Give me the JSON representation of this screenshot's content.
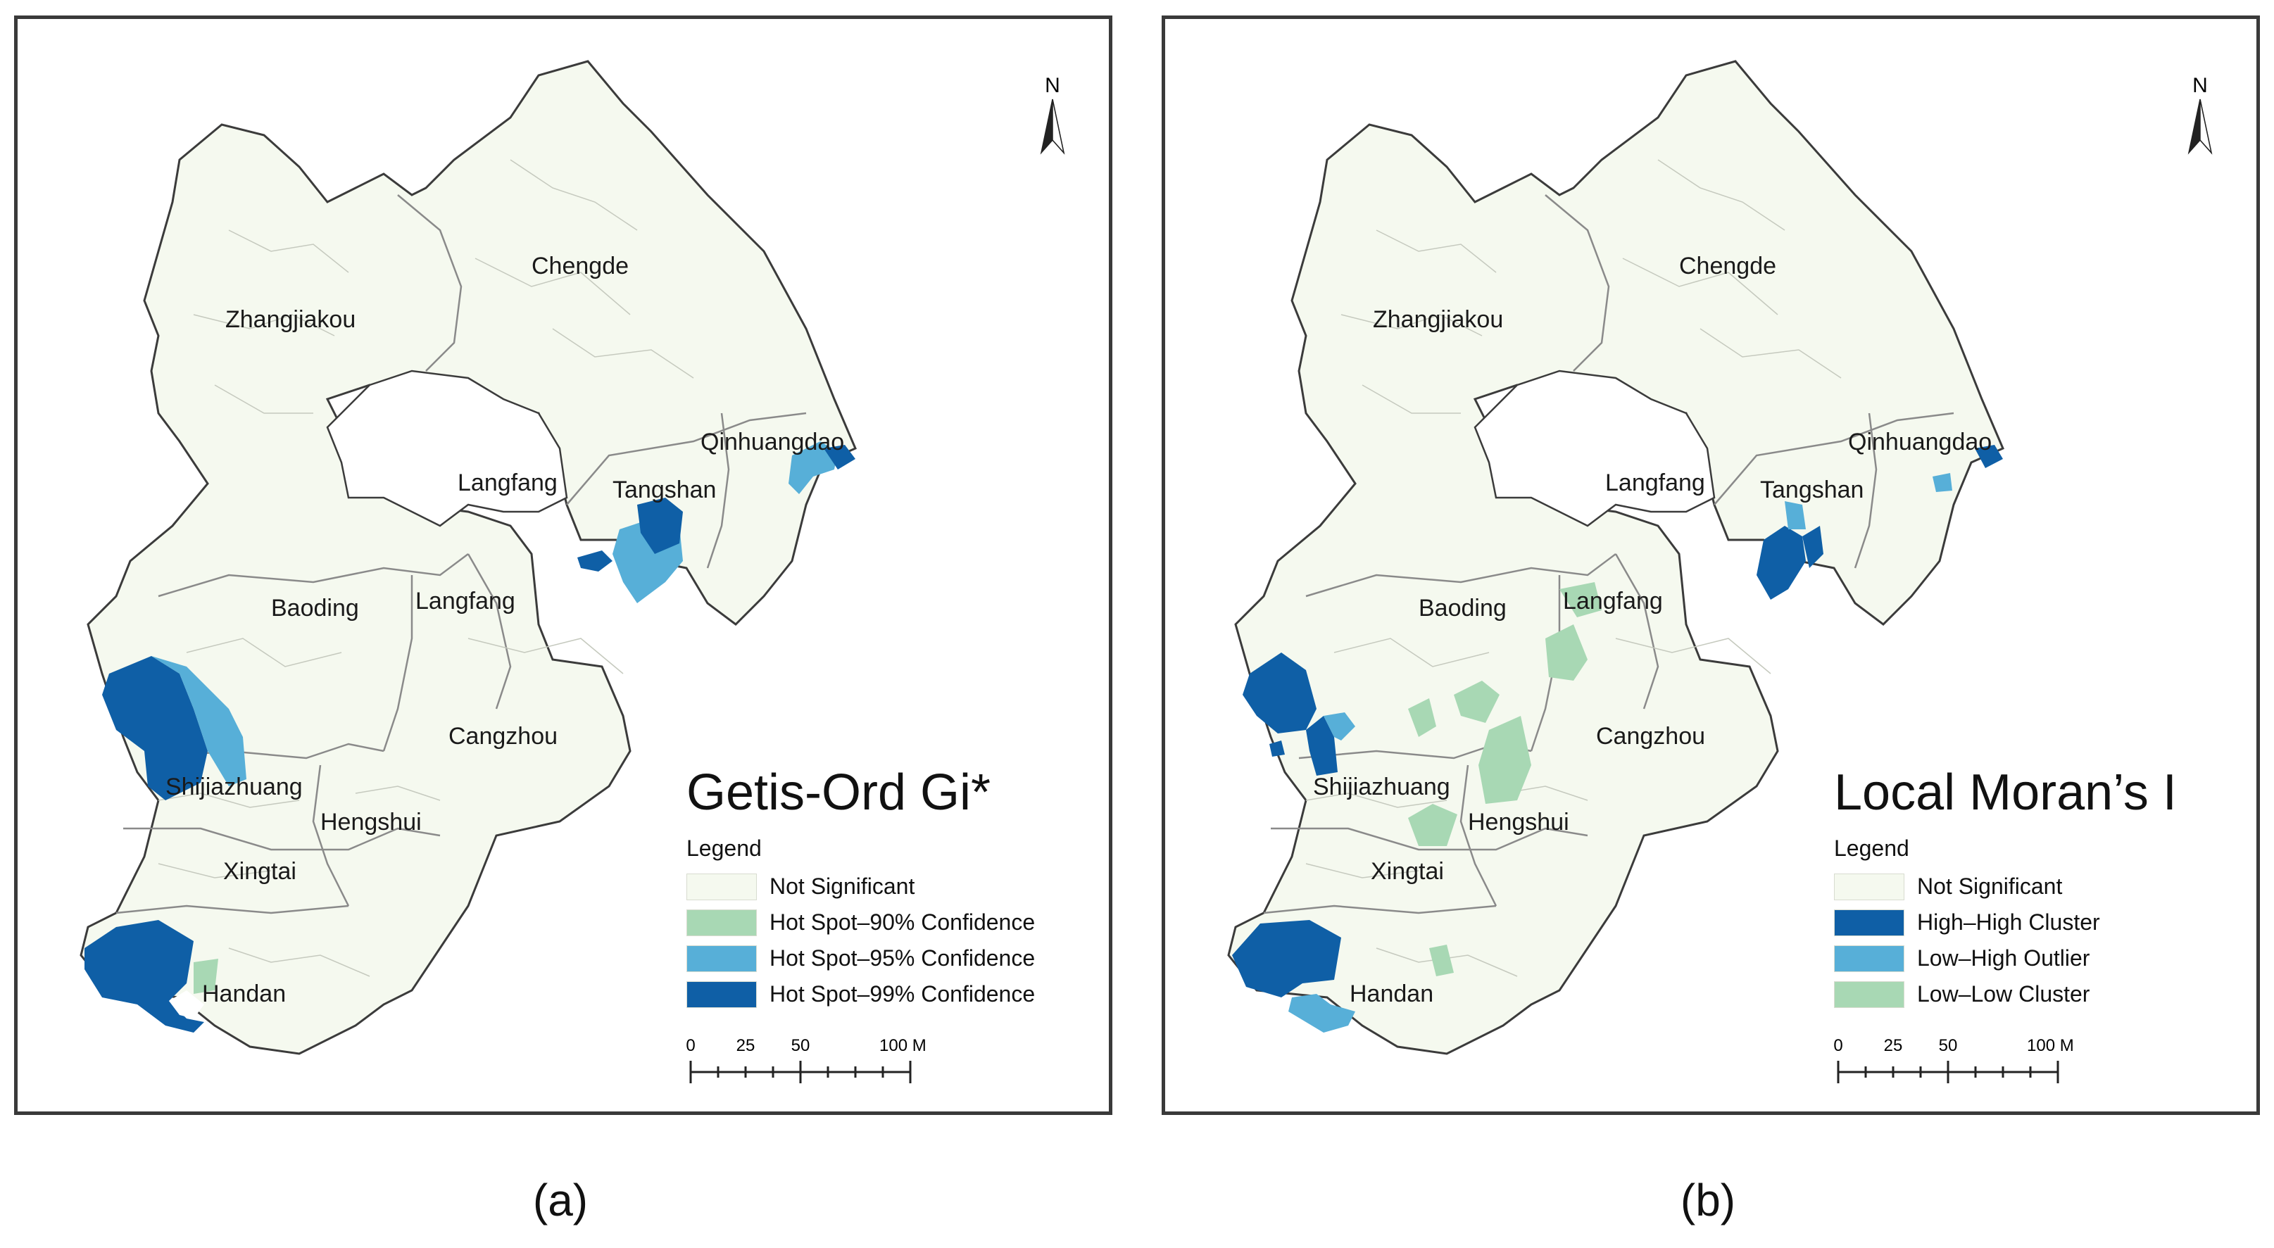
{
  "panels": [
    {
      "title": "Getis-Ord Gi*",
      "caption": "(a)",
      "legend_header": "Legend",
      "legend": [
        {
          "label": "Not Significant",
          "color": "#f5f9ef"
        },
        {
          "label": "Hot Spot–90% Confidence",
          "color": "#a8d8b4"
        },
        {
          "label": "Hot Spot–95% Confidence",
          "color": "#57afd8"
        },
        {
          "label": "Hot Spot–99% Confidence",
          "color": "#0f5fa6"
        }
      ],
      "scale_ticks": [
        "0",
        "25",
        "50",
        "100 Miles"
      ],
      "north": "N",
      "cities": [
        "Chengde",
        "Zhangjiakou",
        "Qinhuangdao",
        "Langfang",
        "Tangshan",
        "Baoding",
        "Langfang",
        "Cangzhou",
        "Shijiazhuang",
        "Hengshui",
        "Xingtai",
        "Handan"
      ]
    },
    {
      "title": "Local Moran’s I",
      "caption": "(b)",
      "legend_header": "Legend",
      "legend": [
        {
          "label": "Not Significant",
          "color": "#f5f9ef"
        },
        {
          "label": "High–High Cluster",
          "color": "#0f5fa6"
        },
        {
          "label": "Low–High Outlier",
          "color": "#57afd8"
        },
        {
          "label": "Low–Low Cluster",
          "color": "#a8d8b4"
        }
      ],
      "scale_ticks": [
        "0",
        "25",
        "50",
        "100 Miles"
      ],
      "north": "N",
      "cities": [
        "Chengde",
        "Zhangjiakou",
        "Qinhuangdao",
        "Langfang",
        "Tangshan",
        "Baoding",
        "Langfang",
        "Cangzhou",
        "Shijiazhuang",
        "Hengshui",
        "Xingtai",
        "Handan"
      ]
    }
  ]
}
